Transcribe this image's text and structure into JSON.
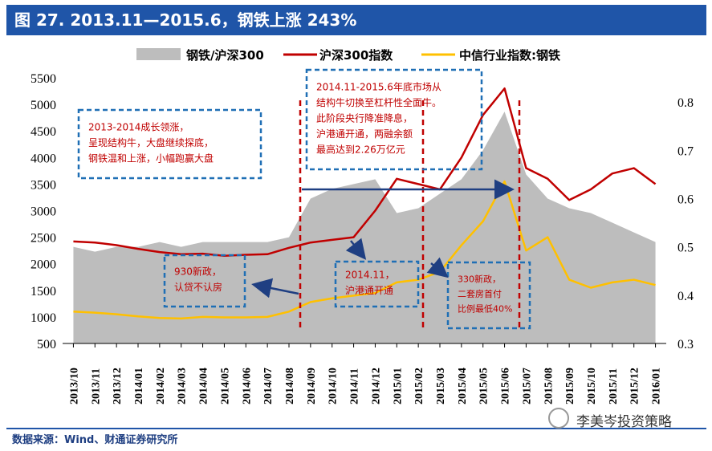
{
  "title": "图 27. 2013.11—2015.6，钢铁上涨 243%",
  "source": "数据来源：Wind、财通证券研究所",
  "watermark": "李美岑投资策略",
  "colors": {
    "bar": "#1f55a8",
    "area": "#bdbdbd",
    "hs300": "#c00000",
    "steel": "#ffc000",
    "box": "#1f6fb5",
    "arrow": "#1f3f82",
    "vline": "#c00000"
  },
  "chart_data": {
    "type": "line",
    "title": "2013.11—2015.6，钢铁上涨 243%",
    "legend": [
      "钢铁/沪深300",
      "沪深300指数",
      "中信行业指数:钢铁"
    ],
    "left_axis": {
      "ticks": [
        500,
        1000,
        1500,
        2000,
        2500,
        3000,
        3500,
        4000,
        4500,
        5000,
        5500
      ],
      "ylim": [
        500,
        5500
      ]
    },
    "right_axis": {
      "ticks": [
        0.3,
        0.4,
        0.5,
        0.6,
        0.7,
        0.8
      ],
      "ylim": [
        0.3,
        0.85
      ]
    },
    "x_ticks": [
      "2013/10",
      "2013/11",
      "2013/12",
      "2014/01",
      "2014/02",
      "2014/03",
      "2014/04",
      "2014/05",
      "2014/06",
      "2014/07",
      "2014/08",
      "2014/09",
      "2014/10",
      "2014/11",
      "2014/12",
      "2015/01",
      "2015/02",
      "2015/03",
      "2015/04",
      "2015/05",
      "2015/06",
      "2015/07",
      "2015/08",
      "2015/09",
      "2015/10",
      "2015/11",
      "2015/12",
      "2016/01"
    ],
    "series": [
      {
        "name": "钢铁/沪深300",
        "axis": "right",
        "kind": "area",
        "values": [
          0.5,
          0.49,
          0.5,
          0.5,
          0.51,
          0.5,
          0.51,
          0.51,
          0.51,
          0.51,
          0.52,
          0.6,
          0.62,
          0.63,
          0.64,
          0.57,
          0.58,
          0.61,
          0.64,
          0.7,
          0.78,
          0.65,
          0.6,
          0.58,
          0.57,
          0.55,
          0.53,
          0.51
        ]
      },
      {
        "name": "沪深300指数",
        "axis": "left",
        "kind": "line",
        "values": [
          2420,
          2400,
          2350,
          2280,
          2220,
          2180,
          2190,
          2150,
          2170,
          2180,
          2300,
          2400,
          2450,
          2500,
          3000,
          3600,
          3500,
          3400,
          4000,
          4800,
          5300,
          3800,
          3600,
          3200,
          3400,
          3700,
          3800,
          3500
        ]
      },
      {
        "name": "中信行业指数:钢铁",
        "axis": "left",
        "kind": "line",
        "values": [
          1100,
          1080,
          1050,
          1010,
          980,
          970,
          1000,
          990,
          990,
          1000,
          1100,
          1280,
          1350,
          1400,
          1450,
          1650,
          1700,
          1850,
          2350,
          2800,
          3550,
          2250,
          2500,
          1700,
          1550,
          1650,
          1700,
          1600
        ]
      }
    ],
    "vlines_at": [
      "2014/08",
      "2015/02",
      "2015/07"
    ],
    "annotations": [
      "2013-2014成长领涨，\n呈现结构牛，大盘继续探底，\n钢铁温和上涨，小幅跑赢大盘",
      "2014.11-2015.6年底市场从\n结构牛切换至杠杆性全面牛。\n此阶段央行降准降息，\n沪港通开通，两融余额\n最高达到2.26万亿元",
      "930新政，\n认贷不认房",
      "2014.11，\n沪港通开通",
      "330新政，\n二套房首付\n比例最低40%"
    ]
  }
}
